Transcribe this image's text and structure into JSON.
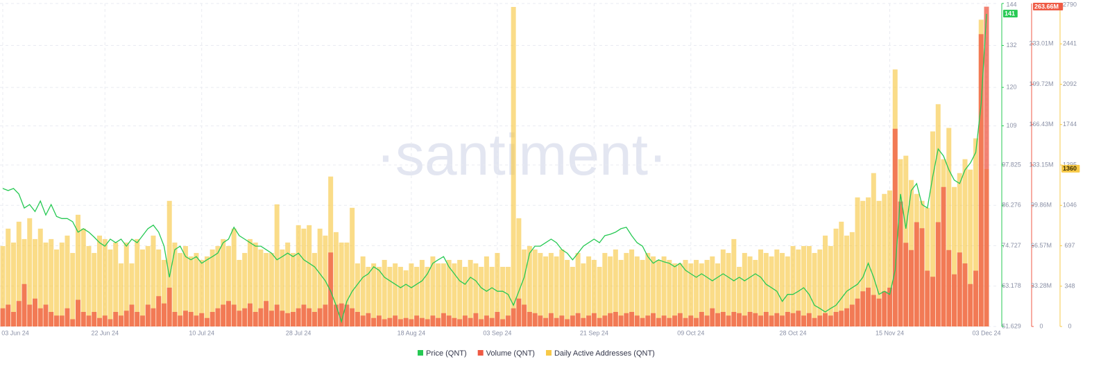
{
  "chart_data": {
    "type": "combo",
    "watermark": "·santiment·",
    "x": [
      "2024-06-03",
      "2024-06-04",
      "2024-06-05",
      "2024-06-06",
      "2024-06-07",
      "2024-06-08",
      "2024-06-09",
      "2024-06-10",
      "2024-06-11",
      "2024-06-12",
      "2024-06-13",
      "2024-06-14",
      "2024-06-15",
      "2024-06-16",
      "2024-06-17",
      "2024-06-18",
      "2024-06-19",
      "2024-06-20",
      "2024-06-21",
      "2024-06-22",
      "2024-06-23",
      "2024-06-24",
      "2024-06-25",
      "2024-06-26",
      "2024-06-27",
      "2024-06-28",
      "2024-06-29",
      "2024-06-30",
      "2024-07-01",
      "2024-07-02",
      "2024-07-03",
      "2024-07-04",
      "2024-07-05",
      "2024-07-06",
      "2024-07-07",
      "2024-07-08",
      "2024-07-09",
      "2024-07-10",
      "2024-07-11",
      "2024-07-12",
      "2024-07-13",
      "2024-07-14",
      "2024-07-15",
      "2024-07-16",
      "2024-07-17",
      "2024-07-18",
      "2024-07-19",
      "2024-07-20",
      "2024-07-21",
      "2024-07-22",
      "2024-07-23",
      "2024-07-24",
      "2024-07-25",
      "2024-07-26",
      "2024-07-27",
      "2024-07-28",
      "2024-07-29",
      "2024-07-30",
      "2024-07-31",
      "2024-08-01",
      "2024-08-02",
      "2024-08-03",
      "2024-08-04",
      "2024-08-05",
      "2024-08-06",
      "2024-08-07",
      "2024-08-08",
      "2024-08-09",
      "2024-08-10",
      "2024-08-11",
      "2024-08-12",
      "2024-08-13",
      "2024-08-14",
      "2024-08-15",
      "2024-08-16",
      "2024-08-17",
      "2024-08-18",
      "2024-08-19",
      "2024-08-20",
      "2024-08-21",
      "2024-08-22",
      "2024-08-23",
      "2024-08-24",
      "2024-08-25",
      "2024-08-26",
      "2024-08-27",
      "2024-08-28",
      "2024-08-29",
      "2024-08-30",
      "2024-08-31",
      "2024-09-01",
      "2024-09-02",
      "2024-09-03",
      "2024-09-04",
      "2024-09-05",
      "2024-09-06",
      "2024-09-07",
      "2024-09-08",
      "2024-09-09",
      "2024-09-10",
      "2024-09-11",
      "2024-09-12",
      "2024-09-13",
      "2024-09-14",
      "2024-09-15",
      "2024-09-16",
      "2024-09-17",
      "2024-09-18",
      "2024-09-19",
      "2024-09-20",
      "2024-09-21",
      "2024-09-22",
      "2024-09-23",
      "2024-09-24",
      "2024-09-25",
      "2024-09-26",
      "2024-09-27",
      "2024-09-28",
      "2024-09-29",
      "2024-09-30",
      "2024-10-01",
      "2024-10-02",
      "2024-10-03",
      "2024-10-04",
      "2024-10-05",
      "2024-10-06",
      "2024-10-07",
      "2024-10-08",
      "2024-10-09",
      "2024-10-10",
      "2024-10-11",
      "2024-10-12",
      "2024-10-13",
      "2024-10-14",
      "2024-10-15",
      "2024-10-16",
      "2024-10-17",
      "2024-10-18",
      "2024-10-19",
      "2024-10-20",
      "2024-10-21",
      "2024-10-22",
      "2024-10-23",
      "2024-10-24",
      "2024-10-25",
      "2024-10-26",
      "2024-10-27",
      "2024-10-28",
      "2024-10-29",
      "2024-10-30",
      "2024-10-31",
      "2024-11-01",
      "2024-11-02",
      "2024-11-03",
      "2024-11-04",
      "2024-11-05",
      "2024-11-06",
      "2024-11-07",
      "2024-11-08",
      "2024-11-09",
      "2024-11-10",
      "2024-11-11",
      "2024-11-12",
      "2024-11-13",
      "2024-11-14",
      "2024-11-15",
      "2024-11-16",
      "2024-11-17",
      "2024-11-18",
      "2024-11-19",
      "2024-11-20",
      "2024-11-21",
      "2024-11-22",
      "2024-11-23",
      "2024-11-24",
      "2024-11-25",
      "2024-11-26",
      "2024-11-27",
      "2024-11-28",
      "2024-11-29",
      "2024-11-30",
      "2024-12-01",
      "2024-12-02",
      "2024-12-03"
    ],
    "xticks": [
      {
        "value": "2024-06-03",
        "label": "03 Jun 24"
      },
      {
        "value": "2024-06-22",
        "label": "22 Jun 24"
      },
      {
        "value": "2024-07-10",
        "label": "10 Jul 24"
      },
      {
        "value": "2024-07-28",
        "label": "28 Jul 24"
      },
      {
        "value": "2024-08-18",
        "label": "18 Aug 24"
      },
      {
        "value": "2024-09-03",
        "label": "03 Sep 24"
      },
      {
        "value": "2024-09-21",
        "label": "21 Sep 24"
      },
      {
        "value": "2024-10-09",
        "label": "09 Oct 24"
      },
      {
        "value": "2024-10-28",
        "label": "28 Oct 24"
      },
      {
        "value": "2024-11-15",
        "label": "15 Nov 24"
      },
      {
        "value": "2024-12-03",
        "label": "03 Dec 24"
      }
    ],
    "ylim": [
      51.629,
      144
    ],
    "yticks": [
      51.629,
      63.178,
      74.727,
      86.276,
      97.825,
      109,
      120,
      132,
      144
    ],
    "y2lim": [
      0,
      266.3
    ],
    "y2ticks": [
      0,
      {
        "value": 33.28,
        "label": "33.28M"
      },
      {
        "value": 66.57,
        "label": "66.57M"
      },
      {
        "value": 99.86,
        "label": "99.86M"
      },
      {
        "value": 133.15,
        "label": "133.15M"
      },
      {
        "value": 166.43,
        "label": "166.43M"
      },
      {
        "value": 199.72,
        "label": "199.72M"
      },
      {
        "value": 233.01,
        "label": "233.01M"
      }
    ],
    "y3lim": [
      0,
      2790
    ],
    "y3ticks": [
      0,
      348,
      697,
      1046,
      1395,
      1744,
      2092,
      2441,
      2790
    ],
    "grid": true,
    "legend": "bottom",
    "series": [
      {
        "name": "Price (QNT)",
        "type": "line",
        "axis": "y",
        "color": "#26c953",
        "badge": 141,
        "values": [
          91.1,
          90.5,
          91.1,
          89.5,
          85.5,
          86.5,
          84.5,
          87.5,
          83.5,
          86.5,
          83.1,
          82.5,
          82.5,
          81.6,
          78.6,
          79.6,
          78.6,
          77.2,
          75.6,
          74.6,
          76.6,
          75.6,
          76.6,
          74.6,
          76.6,
          75.6,
          77.6,
          79.6,
          80.6,
          78.6,
          74.6,
          65.7,
          73.6,
          74.6,
          71.6,
          70.7,
          71.6,
          69.7,
          70.7,
          71.6,
          72.6,
          75.6,
          76.6,
          80,
          77.6,
          76.6,
          75.6,
          74.6,
          74.6,
          73.6,
          72.6,
          70.7,
          71.6,
          72.6,
          71.6,
          72.6,
          70.7,
          69.7,
          68.7,
          66.7,
          64.7,
          61.7,
          57.7,
          53,
          58.8,
          61.7,
          63.7,
          65.7,
          66.7,
          68.7,
          67.7,
          65.7,
          64.7,
          63.7,
          62.7,
          63.7,
          62.7,
          63.7,
          64.7,
          66.7,
          69.7,
          70.7,
          71.6,
          68.7,
          66.7,
          64.7,
          63.7,
          65.7,
          64.7,
          62.7,
          61.7,
          62.7,
          61.7,
          61.7,
          60.8,
          57.7,
          61.7,
          65.7,
          72.6,
          74.6,
          74.6,
          75.6,
          76.6,
          75.6,
          73.6,
          72.6,
          70.7,
          72.6,
          74.6,
          75.6,
          76.6,
          75.6,
          77.6,
          78,
          78.6,
          79.6,
          80,
          77.6,
          75.6,
          74.6,
          71.6,
          69.7,
          70.7,
          70.1,
          69.7,
          68.7,
          69.7,
          67.7,
          66.7,
          65.7,
          66.7,
          65.7,
          64.7,
          65.7,
          66.7,
          65.7,
          64.7,
          65.7,
          64.7,
          65.7,
          66.7,
          65.7,
          63.7,
          62.7,
          61.7,
          58.8,
          60.8,
          60.8,
          61.7,
          62.7,
          60.8,
          57.7,
          56.8,
          55.8,
          56.8,
          57.7,
          59.7,
          61.7,
          62.7,
          63.7,
          65.7,
          69.7,
          65.7,
          60.8,
          61.7,
          60.8,
          67.7,
          89.5,
          79.6,
          90.5,
          92.5,
          86.5,
          85.5,
          94.5,
          102.4,
          100.4,
          96.4,
          93.5,
          92.5,
          96.4,
          98.4,
          101.4,
          115.3,
          141
        ]
      },
      {
        "name": "Volume (QNT)",
        "type": "bar",
        "axis": "y2",
        "color": "#ef5a44",
        "badge": {
          "value": 263.66,
          "label": "263.66M"
        },
        "values": [
          15,
          18,
          12,
          21,
          35,
          18,
          23,
          15,
          18,
          12,
          9,
          9,
          15,
          6,
          22,
          12,
          9,
          12,
          7,
          9,
          6,
          12,
          9,
          13,
          18,
          12,
          9,
          18,
          15,
          25,
          19,
          32,
          12,
          9,
          13,
          12,
          9,
          11,
          7,
          12,
          15,
          18,
          21,
          18,
          13,
          15,
          19,
          12,
          15,
          21,
          13,
          18,
          13,
          11,
          12,
          15,
          18,
          15,
          12,
          15,
          18,
          61,
          18,
          19,
          18,
          15,
          12,
          9,
          11,
          7,
          9,
          6,
          7,
          9,
          6,
          7,
          6,
          9,
          7,
          6,
          9,
          7,
          11,
          9,
          7,
          6,
          9,
          7,
          11,
          6,
          9,
          7,
          12,
          6,
          9,
          15,
          23,
          18,
          12,
          11,
          9,
          7,
          11,
          7,
          9,
          6,
          9,
          11,
          7,
          9,
          11,
          7,
          9,
          11,
          12,
          9,
          11,
          12,
          9,
          7,
          9,
          11,
          7,
          9,
          7,
          9,
          11,
          7,
          9,
          7,
          12,
          9,
          15,
          11,
          12,
          9,
          12,
          11,
          9,
          12,
          11,
          9,
          12,
          9,
          11,
          9,
          12,
          11,
          13,
          9,
          11,
          7,
          9,
          11,
          9,
          12,
          13,
          15,
          18,
          23,
          29,
          32,
          26,
          23,
          29,
          32,
          163,
          103,
          69,
          63,
          86,
          81,
          46,
          41,
          86,
          115,
          63,
          43,
          61,
          52,
          35,
          46,
          241,
          263.66
        ]
      },
      {
        "name": "Daily Active Addresses (QNT)",
        "type": "bar",
        "axis": "y3",
        "color": "#f7c948",
        "badge": 1360,
        "values": [
          695,
          845,
          725,
          905,
          755,
          935,
          755,
          845,
          725,
          755,
          665,
          725,
          785,
          635,
          965,
          845,
          695,
          635,
          785,
          755,
          665,
          725,
          545,
          725,
          545,
          755,
          665,
          695,
          785,
          665,
          575,
          1085,
          725,
          635,
          695,
          605,
          635,
          575,
          605,
          665,
          695,
          755,
          695,
          845,
          575,
          635,
          755,
          725,
          665,
          635,
          635,
          1055,
          665,
          725,
          635,
          875,
          845,
          875,
          635,
          845,
          785,
          1295,
          815,
          725,
          725,
          1025,
          545,
          605,
          515,
          545,
          515,
          575,
          515,
          545,
          515,
          485,
          545,
          515,
          575,
          515,
          605,
          545,
          545,
          575,
          545,
          575,
          515,
          575,
          545,
          515,
          605,
          515,
          635,
          515,
          515,
          2760,
          935,
          665,
          695,
          665,
          635,
          605,
          635,
          605,
          665,
          575,
          515,
          635,
          545,
          605,
          575,
          515,
          635,
          605,
          665,
          575,
          635,
          665,
          605,
          575,
          635,
          605,
          575,
          605,
          575,
          545,
          545,
          575,
          545,
          575,
          545,
          575,
          605,
          545,
          665,
          635,
          755,
          515,
          635,
          605,
          575,
          665,
          635,
          605,
          665,
          635,
          605,
          695,
          665,
          695,
          695,
          635,
          665,
          785,
          695,
          845,
          905,
          785,
          815,
          1115,
          1085,
          1115,
          1325,
          1085,
          1145,
          1175,
          2220,
          1445,
          1475,
          1265,
          1145,
          1085,
          1025,
          1685,
          1920,
          1445,
          1715,
          1205,
          1325,
          1445,
          1355,
          1625,
          2650,
          1360
        ]
      }
    ]
  }
}
